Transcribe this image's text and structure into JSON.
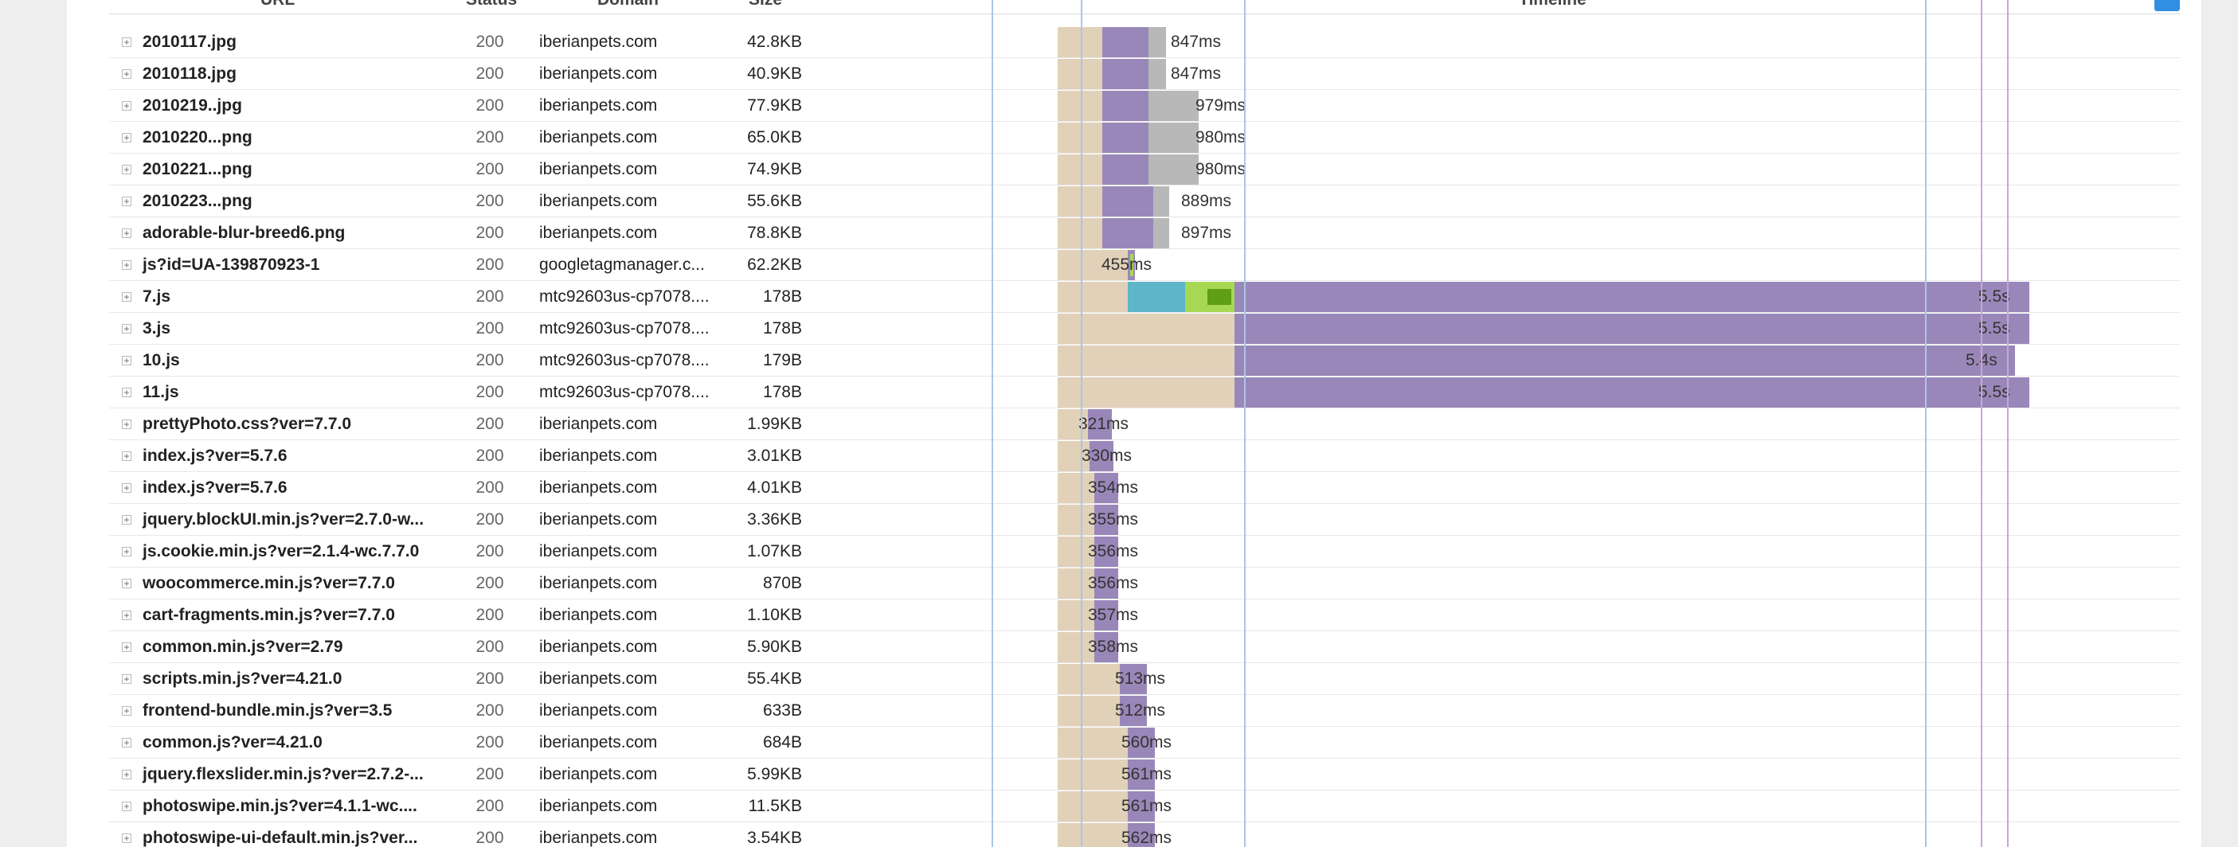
{
  "header": {
    "col_url": "URL",
    "col_status": "Status",
    "col_domain": "Domain",
    "col_size": "Size",
    "col_timeline": "Timeline"
  },
  "colors": {
    "wait": "#e1d1b8",
    "receive": "#9a87b9",
    "cached": "#b8b8b8",
    "connect": "#5db6c9",
    "ssl": "#a6d854",
    "ssl_dark": "#5f9e16"
  },
  "rows": [
    {
      "name": "2010117.jpg",
      "status": "200",
      "domain": "iberianpets.com",
      "size": "42.8KB",
      "duration": "847ms"
    },
    {
      "name": "2010118.jpg",
      "status": "200",
      "domain": "iberianpets.com",
      "size": "40.9KB",
      "duration": "847ms"
    },
    {
      "name": "2010219..jpg",
      "status": "200",
      "domain": "iberianpets.com",
      "size": "77.9KB",
      "duration": "979ms"
    },
    {
      "name": "2010220...png",
      "status": "200",
      "domain": "iberianpets.com",
      "size": "65.0KB",
      "duration": "980ms"
    },
    {
      "name": "2010221...png",
      "status": "200",
      "domain": "iberianpets.com",
      "size": "74.9KB",
      "duration": "980ms"
    },
    {
      "name": "2010223...png",
      "status": "200",
      "domain": "iberianpets.com",
      "size": "55.6KB",
      "duration": "889ms"
    },
    {
      "name": "adorable-blur-breed6.png",
      "status": "200",
      "domain": "iberianpets.com",
      "size": "78.8KB",
      "duration": "897ms"
    },
    {
      "name": "js?id=UA-139870923-1",
      "status": "200",
      "domain": "googletagmanager.c...",
      "size": "62.2KB",
      "duration": "455ms"
    },
    {
      "name": "7.js",
      "status": "200",
      "domain": "mtc92603us-cp7078....",
      "size": "178B",
      "duration": "5.5s"
    },
    {
      "name": "3.js",
      "status": "200",
      "domain": "mtc92603us-cp7078....",
      "size": "178B",
      "duration": "5.5s"
    },
    {
      "name": "10.js",
      "status": "200",
      "domain": "mtc92603us-cp7078....",
      "size": "179B",
      "duration": "5.4s"
    },
    {
      "name": "11.js",
      "status": "200",
      "domain": "mtc92603us-cp7078....",
      "size": "178B",
      "duration": "5.5s"
    },
    {
      "name": "prettyPhoto.css?ver=7.7.0",
      "status": "200",
      "domain": "iberianpets.com",
      "size": "1.99KB",
      "duration": "321ms"
    },
    {
      "name": "index.js?ver=5.7.6",
      "status": "200",
      "domain": "iberianpets.com",
      "size": "3.01KB",
      "duration": "330ms"
    },
    {
      "name": "index.js?ver=5.7.6",
      "status": "200",
      "domain": "iberianpets.com",
      "size": "4.01KB",
      "duration": "354ms"
    },
    {
      "name": "jquery.blockUI.min.js?ver=2.7.0-w...",
      "status": "200",
      "domain": "iberianpets.com",
      "size": "3.36KB",
      "duration": "355ms"
    },
    {
      "name": "js.cookie.min.js?ver=2.1.4-wc.7.7.0",
      "status": "200",
      "domain": "iberianpets.com",
      "size": "1.07KB",
      "duration": "356ms"
    },
    {
      "name": "woocommerce.min.js?ver=7.7.0",
      "status": "200",
      "domain": "iberianpets.com",
      "size": "870B",
      "duration": "356ms"
    },
    {
      "name": "cart-fragments.min.js?ver=7.7.0",
      "status": "200",
      "domain": "iberianpets.com",
      "size": "1.10KB",
      "duration": "357ms"
    },
    {
      "name": "common.min.js?ver=2.79",
      "status": "200",
      "domain": "iberianpets.com",
      "size": "5.90KB",
      "duration": "358ms"
    },
    {
      "name": "scripts.min.js?ver=4.21.0",
      "status": "200",
      "domain": "iberianpets.com",
      "size": "55.4KB",
      "duration": "513ms"
    },
    {
      "name": "frontend-bundle.min.js?ver=3.5",
      "status": "200",
      "domain": "iberianpets.com",
      "size": "633B",
      "duration": "512ms"
    },
    {
      "name": "common.js?ver=4.21.0",
      "status": "200",
      "domain": "iberianpets.com",
      "size": "684B",
      "duration": "560ms"
    },
    {
      "name": "jquery.flexslider.min.js?ver=2.7.2-...",
      "status": "200",
      "domain": "iberianpets.com",
      "size": "5.99KB",
      "duration": "561ms"
    },
    {
      "name": "photoswipe.min.js?ver=4.1.1-wc....",
      "status": "200",
      "domain": "iberianpets.com",
      "size": "11.5KB",
      "duration": "561ms"
    },
    {
      "name": "photoswipe-ui-default.min.js?ver...",
      "status": "200",
      "domain": "iberianpets.com",
      "size": "3.54KB",
      "duration": "562ms"
    }
  ]
}
